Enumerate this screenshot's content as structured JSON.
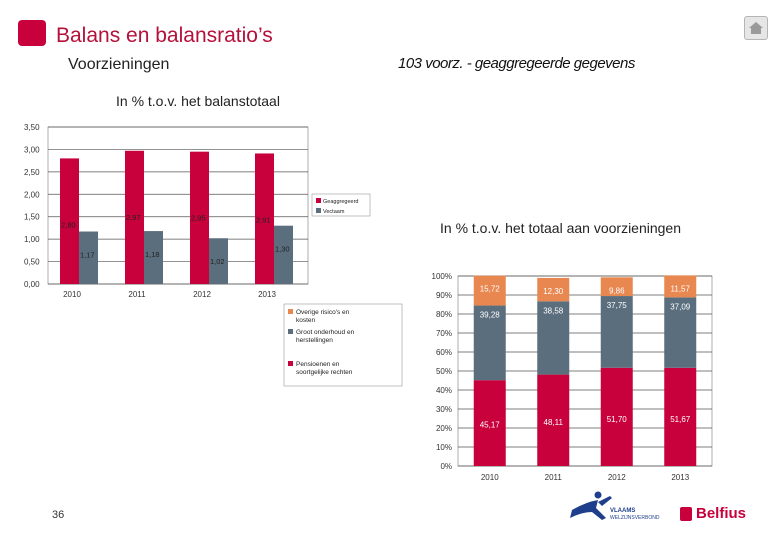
{
  "header": {
    "title": "Balans en balansratio’s",
    "subtitle": "Voorzieningen",
    "subtitle_right": "103 voorz. - geaggregeerde gegevens"
  },
  "footer": {
    "page_number": "36",
    "vlaams_logo_text": [
      "VLAAMS",
      "WELZIJNSVERBOND"
    ],
    "belfius_label": "Belfius"
  },
  "colors": {
    "brand": "#c8003c",
    "series_red": "#c8003c",
    "series_gray": "#5b6e7e",
    "series_orange": "#e8874f"
  },
  "chart_data": [
    {
      "type": "bar",
      "title": "In % t.o.v. het balanstotaal",
      "categories": [
        "2010",
        "2011",
        "2012",
        "2013"
      ],
      "series": [
        {
          "name": "Geaggregeerd",
          "values": [
            2.8,
            2.97,
            2.95,
            2.91
          ],
          "labels": [
            "2,80",
            "2,97",
            "2,95",
            "2,91"
          ]
        },
        {
          "name": "Vectaam",
          "values": [
            1.17,
            1.18,
            1.02,
            1.3
          ],
          "labels": [
            "1,17",
            "1,18",
            "1,02",
            "1,30"
          ]
        }
      ],
      "ylim": [
        0,
        3.5
      ],
      "yticks": [
        "0,00",
        "0,50",
        "1,00",
        "1,50",
        "2,00",
        "2,50",
        "3,00",
        "3,50"
      ],
      "grid": true,
      "legend_position": "right"
    },
    {
      "type": "bar",
      "stacked": true,
      "title": "In % t.o.v. het totaal aan voorzieningen",
      "categories": [
        "2010",
        "2011",
        "2012",
        "2013"
      ],
      "series": [
        {
          "name": "Pensioenen en soortgelijke rechten",
          "values": [
            45.17,
            48.11,
            51.7,
            51.67
          ],
          "labels": [
            "45,17",
            "48,11",
            "51,70",
            "51,67"
          ]
        },
        {
          "name": "Groot onderhoud en herstellingen",
          "values": [
            39.28,
            38.58,
            37.75,
            37.09
          ],
          "labels": [
            "39,28",
            "38,58",
            "37,75",
            "37,09"
          ]
        },
        {
          "name": "Overige risico's en kosten",
          "values": [
            15.72,
            12.3,
            9.86,
            11.57
          ],
          "labels": [
            "15,72",
            "12,30",
            "9,86",
            "11,57"
          ]
        }
      ],
      "ylim": [
        0,
        100
      ],
      "yticks": [
        "0%",
        "10%",
        "20%",
        "30%",
        "40%",
        "50%",
        "60%",
        "70%",
        "80%",
        "90%",
        "100%"
      ],
      "grid": true,
      "legend_position": "left",
      "legend_order": [
        "Overige risico's en kosten",
        "Groot onderhoud en herstellingen",
        "Pensioenen en soortgelijke rechten"
      ]
    }
  ]
}
